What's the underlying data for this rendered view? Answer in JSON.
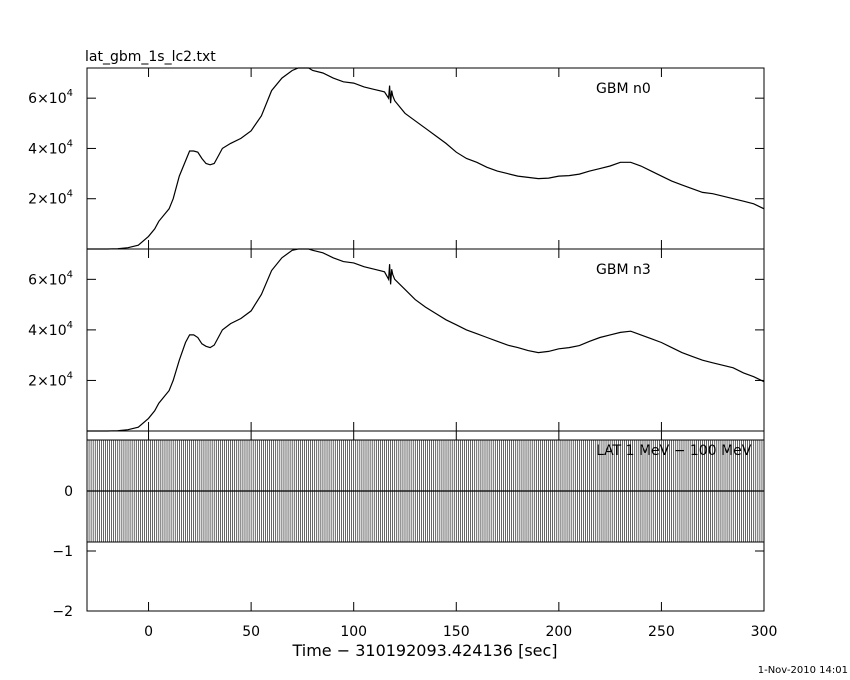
{
  "chart_data": {
    "type": "line",
    "title": "lat_gbm_1s_lc2.txt",
    "xlabel": "Time − 310192093.424136 [sec]",
    "xlim": [
      -30,
      300
    ],
    "x_ticks": [
      "0",
      "50",
      "100",
      "150",
      "200",
      "250",
      "300"
    ],
    "x_tick_values": [
      0,
      50,
      100,
      150,
      200,
      250,
      300
    ],
    "timestamp": "1-Nov-2010 14:01",
    "panels": [
      {
        "label": "GBM n0",
        "ylim": [
          0,
          72000
        ],
        "y_tick_values": [
          20000,
          40000,
          60000
        ],
        "y_ticks": [
          {
            "mant": "2×10",
            "exp": "4"
          },
          {
            "mant": "4×10",
            "exp": "4"
          },
          {
            "mant": "6×10",
            "exp": "4"
          }
        ],
        "series": [
          {
            "x": [
              -30,
              -20,
              -15,
              -10,
              -5,
              0,
              3,
              5,
              8,
              10,
              12,
              15,
              18,
              20,
              22,
              24,
              26,
              28,
              30,
              32,
              34,
              36,
              40,
              45,
              50,
              55,
              60,
              65,
              70,
              73,
              75,
              78,
              80,
              85,
              90,
              95,
              100,
              105,
              110,
              115,
              117,
              117.5,
              118,
              118.5,
              119,
              120,
              125,
              130,
              135,
              140,
              145,
              150,
              155,
              160,
              165,
              170,
              175,
              180,
              185,
              190,
              195,
              200,
              205,
              210,
              215,
              220,
              225,
              230,
              235,
              240,
              245,
              250,
              255,
              260,
              265,
              270,
              275,
              280,
              285,
              290,
              295,
              300
            ],
            "y": [
              0,
              0,
              100,
              500,
              1500,
              5000,
              8000,
              11000,
              14000,
              16000,
              20000,
              29000,
              35000,
              39000,
              39000,
              38500,
              36000,
              34000,
              33500,
              34000,
              37000,
              40000,
              42000,
              44000,
              47000,
              53000,
              63000,
              68000,
              71000,
              72500,
              72000,
              72500,
              71000,
              70000,
              68000,
              66500,
              66000,
              64500,
              63500,
              62500,
              60000,
              65000,
              58000,
              63000,
              61000,
              59000,
              54000,
              51000,
              48000,
              45000,
              42000,
              38500,
              36000,
              34500,
              32500,
              31000,
              30000,
              29000,
              28500,
              28000,
              28200,
              29000,
              29200,
              29800,
              31000,
              32000,
              33000,
              34500,
              34500,
              33000,
              31000,
              29000,
              27000,
              25500,
              24000,
              22500,
              22000,
              21000,
              20000,
              19000,
              18000,
              16000
            ]
          }
        ]
      },
      {
        "label": "GBM n3",
        "ylim": [
          0,
          72000
        ],
        "y_tick_values": [
          20000,
          40000,
          60000
        ],
        "y_ticks": [
          {
            "mant": "2×10",
            "exp": "4"
          },
          {
            "mant": "4×10",
            "exp": "4"
          },
          {
            "mant": "6×10",
            "exp": "4"
          }
        ],
        "series": [
          {
            "x": [
              -30,
              -20,
              -15,
              -10,
              -5,
              0,
              3,
              5,
              8,
              10,
              12,
              15,
              18,
              20,
              22,
              24,
              26,
              28,
              30,
              32,
              34,
              36,
              40,
              45,
              50,
              55,
              60,
              65,
              70,
              73,
              75,
              78,
              80,
              85,
              90,
              95,
              100,
              105,
              110,
              115,
              117,
              117.5,
              118,
              118.5,
              119,
              120,
              125,
              130,
              135,
              140,
              145,
              150,
              155,
              160,
              165,
              170,
              175,
              180,
              185,
              190,
              195,
              200,
              205,
              210,
              215,
              220,
              225,
              230,
              235,
              240,
              245,
              250,
              255,
              260,
              265,
              270,
              275,
              280,
              285,
              290,
              295,
              300
            ],
            "y": [
              0,
              0,
              100,
              500,
              1500,
              5000,
              8000,
              11000,
              14000,
              16000,
              20000,
              28000,
              35000,
              38000,
              38000,
              37000,
              34500,
              33500,
              33000,
              34000,
              37000,
              40000,
              42500,
              44500,
              47500,
              54000,
              63500,
              68500,
              71500,
              72800,
              72300,
              72500,
              71500,
              70500,
              68500,
              67000,
              66500,
              65000,
              64000,
              63000,
              60000,
              66000,
              58000,
              64000,
              62000,
              60000,
              56000,
              52000,
              49000,
              46500,
              44000,
              42000,
              40000,
              38500,
              37000,
              35500,
              34000,
              33000,
              31800,
              31000,
              31500,
              32500,
              33000,
              33800,
              35500,
              37000,
              38000,
              39000,
              39500,
              38000,
              36500,
              35000,
              33000,
              31000,
              29500,
              28000,
              27000,
              26000,
              25000,
              23000,
              21500,
              19500
            ]
          }
        ]
      },
      {
        "label": "LAT 1 MeV − 100 MeV",
        "ylim": [
          -2,
          1
        ],
        "y_tick_values": [
          -2,
          -1,
          0
        ],
        "y_ticks": [
          {
            "mant": "−2",
            "exp": ""
          },
          {
            "mant": "−1",
            "exp": ""
          },
          {
            "mant": "0",
            "exp": ""
          }
        ],
        "band": {
          "low": -0.85,
          "high": 0.85,
          "spacing": 1
        },
        "series": [
          {
            "x": [
              -30,
              300
            ],
            "y": [
              0,
              0
            ]
          }
        ]
      }
    ]
  }
}
